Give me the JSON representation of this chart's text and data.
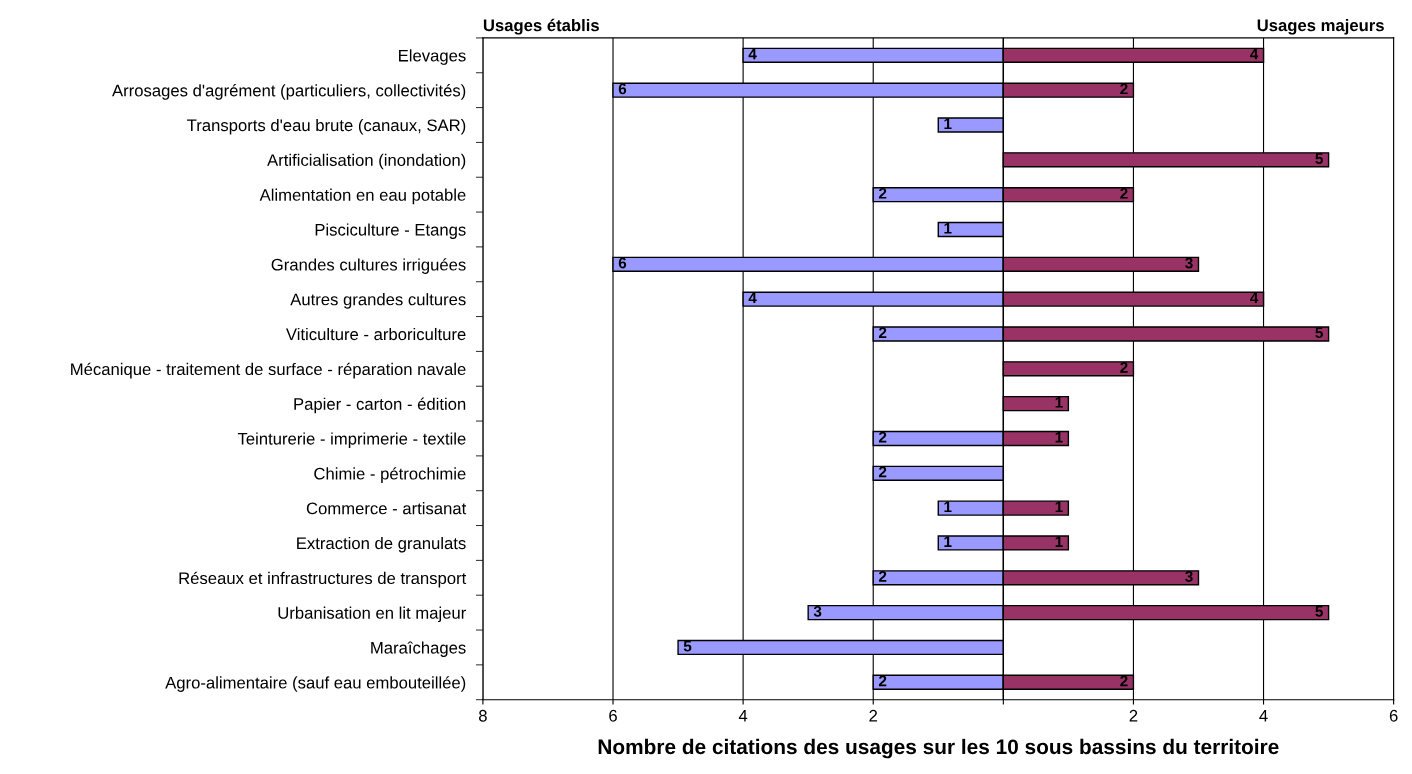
{
  "chart_data": {
    "type": "bar",
    "orientation": "horizontal",
    "xlabel": "Nombre de citations des usages sur les 10 sous bassins du territoire",
    "annotations": [
      "Usages établis",
      "Usages majeurs"
    ],
    "categories": [
      "Elevages",
      "Arrosages d'agrément (particuliers, collectivités)",
      "Transports d'eau brute (canaux, SAR)",
      "Artificialisation (inondation)",
      "Alimentation en eau potable",
      "Pisciculture - Etangs",
      "Grandes cultures irriguées",
      "Autres grandes cultures",
      "Viticulture - arboriculture",
      "Mécanique - traitement de surface - réparation navale",
      "Papier - carton - édition",
      "Teinturerie - imprimerie - textile",
      "Chimie - pétrochimie",
      "Commerce - artisanat",
      "Extraction de granulats",
      "Réseaux et infrastructures de transport",
      "Urbanisation en lit majeur",
      "Maraîchages",
      "Agro-alimentaire (sauf eau embouteillée)"
    ],
    "series": [
      {
        "color": "#9999ff",
        "values": [
          4,
          6,
          1,
          null,
          2,
          1,
          6,
          4,
          2,
          null,
          null,
          2,
          2,
          1,
          1,
          2,
          3,
          5,
          2
        ],
        "base": [
          -4,
          -6,
          -1,
          null,
          -2,
          -1,
          -6,
          -4,
          -2,
          null,
          null,
          -2,
          -2,
          -1,
          -1,
          -2,
          -3,
          -5,
          -2
        ],
        "value_labels": [
          "4",
          "6",
          "1",
          null,
          "2",
          "1",
          "6",
          "4",
          "2",
          null,
          null,
          "2",
          "2",
          "1",
          "1",
          "2",
          "3",
          "5",
          "2"
        ]
      },
      {
        "color": "#993366",
        "values": [
          4,
          2,
          null,
          5,
          2,
          null,
          3,
          4,
          5,
          2,
          1,
          1,
          null,
          1,
          1,
          3,
          5,
          null,
          2
        ],
        "value_labels": [
          "4",
          "2",
          null,
          "5",
          "2",
          null,
          "3",
          "4",
          "5",
          "2",
          "1",
          "1",
          null,
          "1",
          "1",
          "3",
          "5",
          null,
          "2"
        ]
      }
    ],
    "xlim": [
      -8,
      6
    ],
    "xticks": [
      {
        "value": -8,
        "label": "8"
      },
      {
        "value": -6,
        "label": "6"
      },
      {
        "value": -4,
        "label": "4"
      },
      {
        "value": -2,
        "label": "2"
      },
      {
        "value": 0,
        "label": null
      },
      {
        "value": 2,
        "label": "2"
      },
      {
        "value": 4,
        "label": "4"
      },
      {
        "value": 6,
        "label": "6"
      }
    ],
    "grid": "x",
    "legend": false
  }
}
